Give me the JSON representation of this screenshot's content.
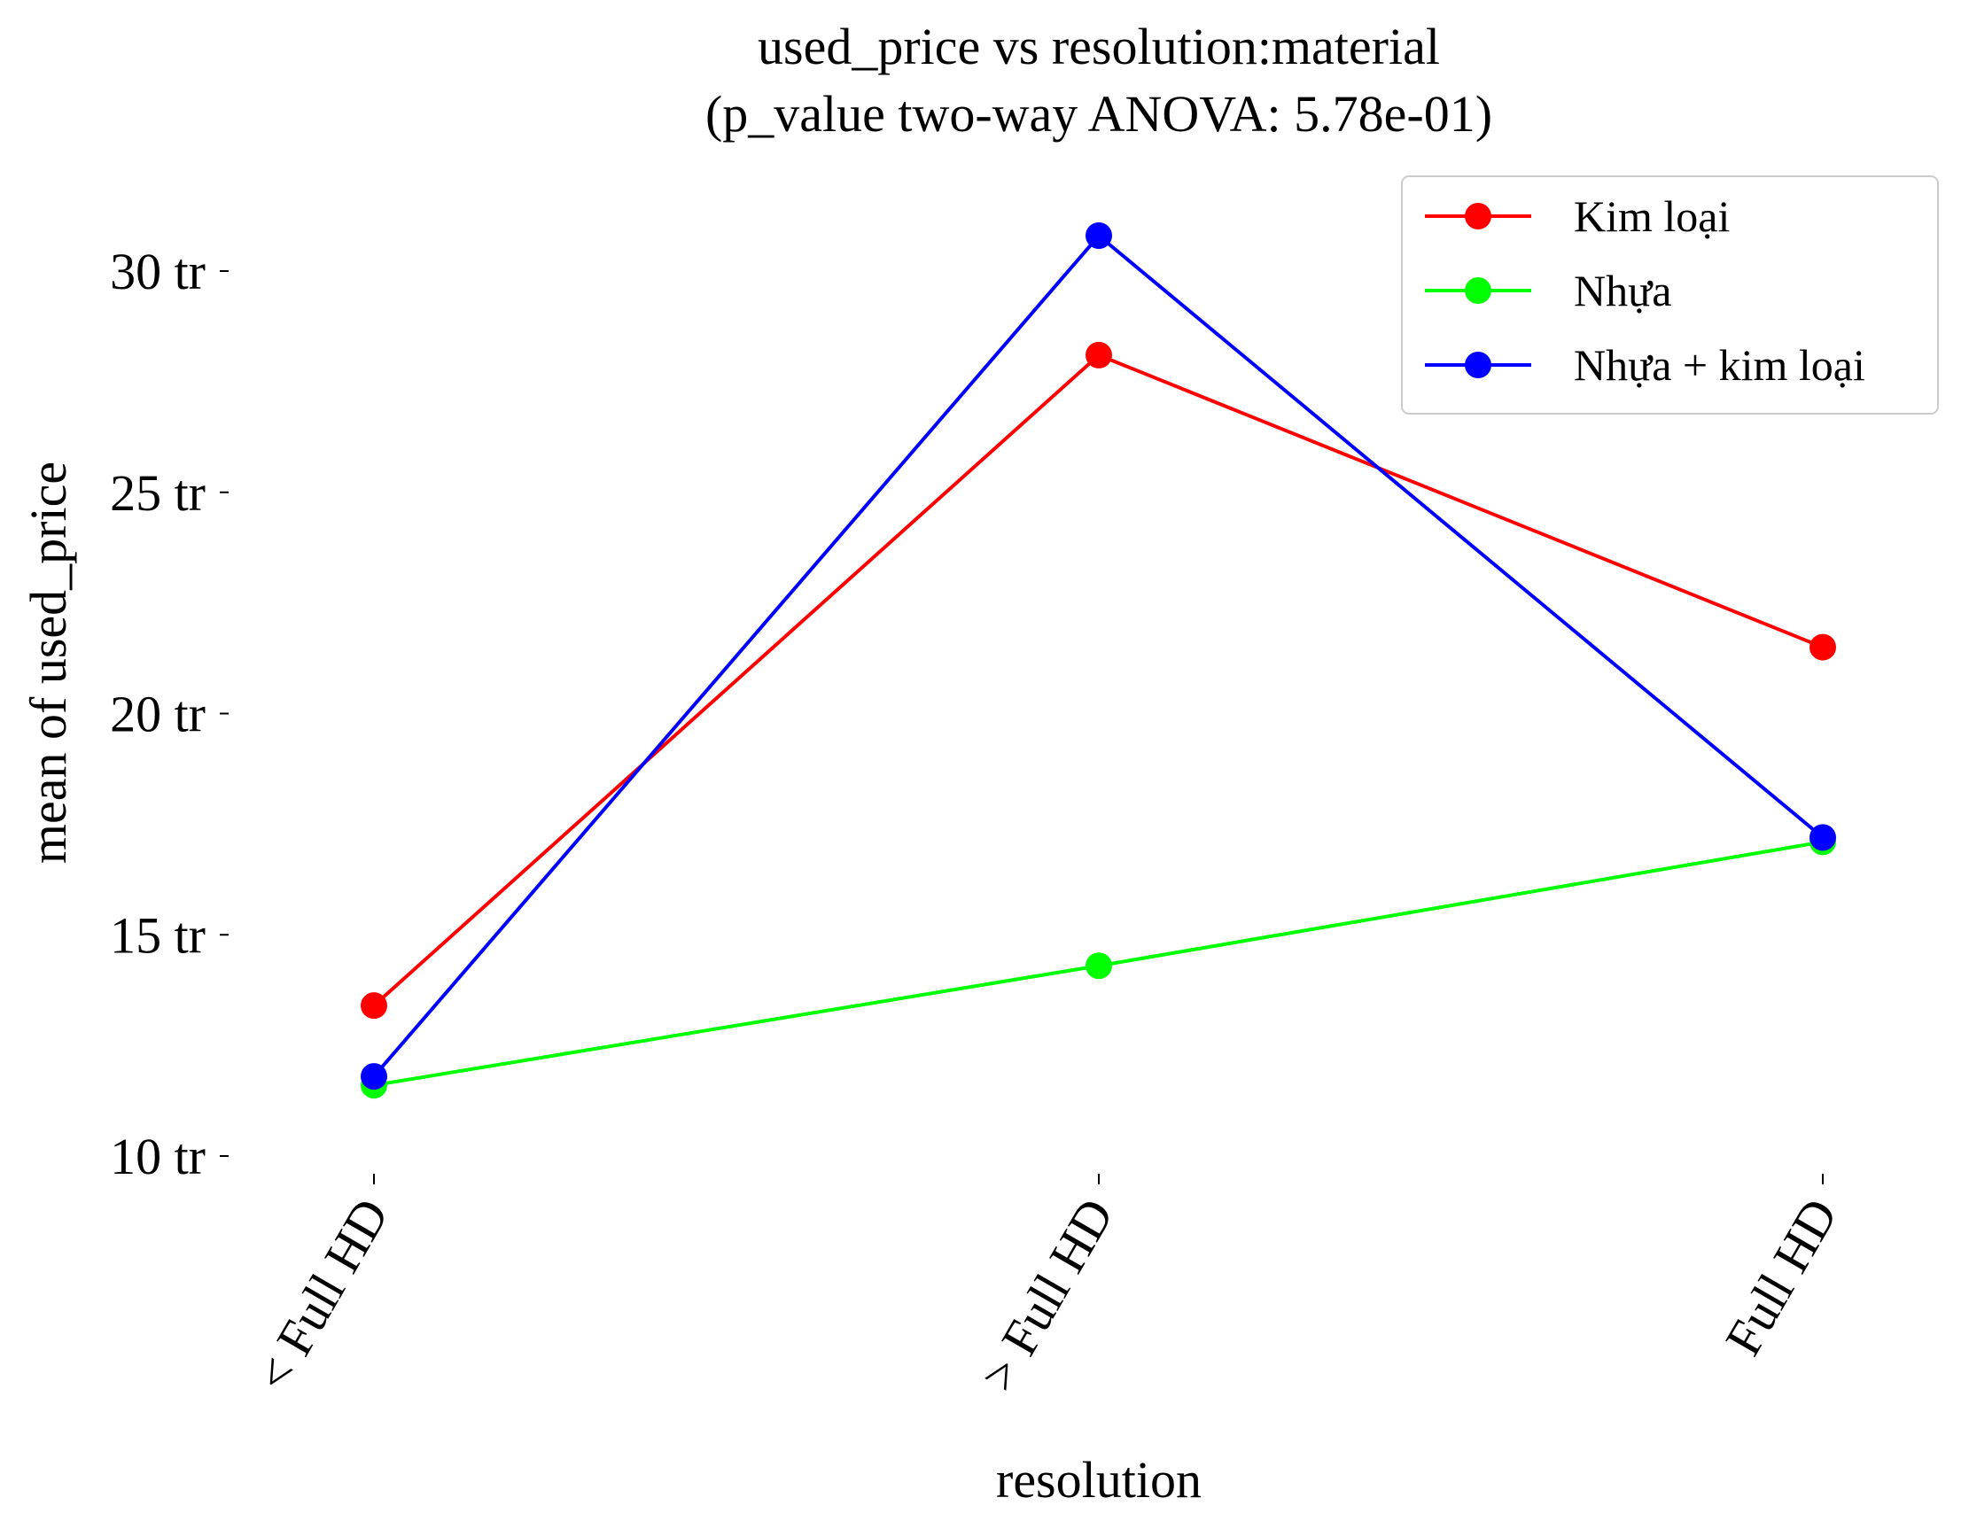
{
  "chart_data": {
    "type": "line",
    "title": "used_price vs resolution:material",
    "subtitle": "(p_value two-way ANOVA: 5.78e-01)",
    "xlabel": "resolution",
    "ylabel": "mean of used_price",
    "categories": [
      "< Full HD",
      "> Full HD",
      "Full HD"
    ],
    "ylim": [
      10,
      32
    ],
    "yticks": [
      {
        "value": 10,
        "label": "10 tr"
      },
      {
        "value": 15,
        "label": "15 tr"
      },
      {
        "value": 20,
        "label": "20 tr"
      },
      {
        "value": 25,
        "label": "25 tr"
      },
      {
        "value": 30,
        "label": "30 tr"
      }
    ],
    "grid": false,
    "legend_position": "top-right",
    "series": [
      {
        "name": "Kim loại",
        "color": "#ff0000",
        "values": [
          13.4,
          28.1,
          21.5
        ]
      },
      {
        "name": "Nhựa",
        "color": "#00ff00",
        "values": [
          11.6,
          14.3,
          17.1
        ]
      },
      {
        "name": "Nhựa + kim loại",
        "color": "#0000ff",
        "values": [
          11.8,
          30.8,
          17.2
        ]
      }
    ]
  }
}
